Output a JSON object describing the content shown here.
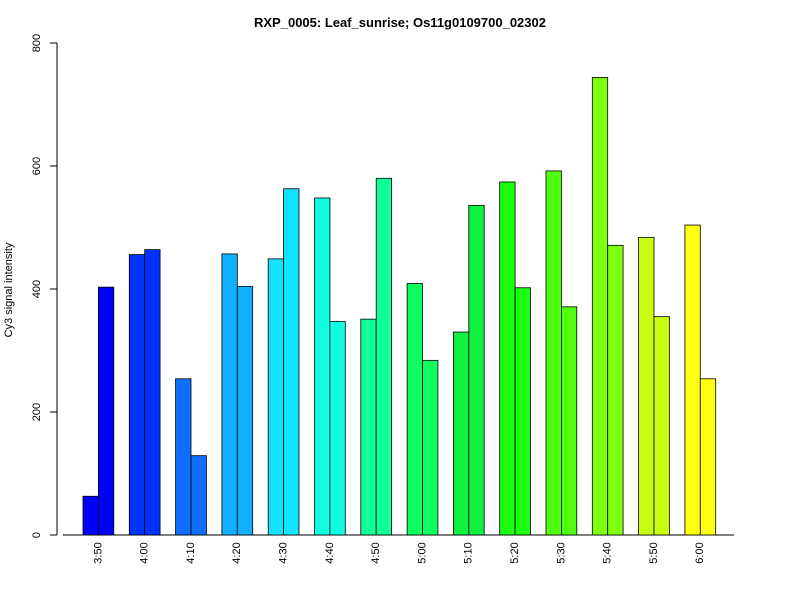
{
  "chart_data": {
    "type": "bar",
    "title": "RXP_0005: Leaf_sunrise; Os11g0109700_02302",
    "xlabel": "",
    "ylabel": "Cy3 signal intensity",
    "ylim": [
      0,
      800
    ],
    "yticks": [
      0,
      200,
      400,
      600,
      800
    ],
    "grid": false,
    "legend": "none",
    "categories": [
      "3:50",
      "4:00",
      "4:10",
      "4:20",
      "4:30",
      "4:40",
      "4:50",
      "5:00",
      "5:10",
      "5:20",
      "5:30",
      "5:40",
      "5:50",
      "6:00"
    ],
    "series": [
      {
        "values": [
          63,
          456,
          254,
          457,
          449,
          548,
          351,
          409,
          330,
          574,
          592,
          744,
          484,
          504
        ]
      },
      {
        "values": [
          403,
          464,
          129,
          404,
          563,
          347,
          580,
          284,
          536,
          402,
          371,
          471,
          355,
          254
        ]
      }
    ],
    "colors": [
      "#0000FF",
      "#0033FF",
      "#0F70FF",
      "#10B0FF",
      "#12E4FF",
      "#10FFE0",
      "#10FF98",
      "#10FF60",
      "#10F040",
      "#1DFF10",
      "#50FF10",
      "#80FF10",
      "#C8FF10",
      "#FFFF10"
    ]
  }
}
